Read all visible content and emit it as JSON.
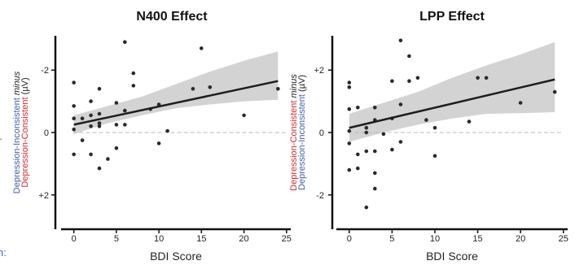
{
  "page": {
    "edge_labels": [
      "n:"
    ]
  },
  "chart_data": [
    {
      "type": "scatter",
      "title": "N400 Effect",
      "xlabel": "BDI Score",
      "ylabel_lines": [
        [
          {
            "text": "Depression-Inconsistent ",
            "color": "#3d5fa8"
          },
          {
            "text": "minus",
            "color": "#222222",
            "italic": true
          }
        ],
        [
          {
            "text": "Depression-Consistent",
            "color": "#d42a2a"
          },
          {
            "text": " (µV)",
            "color": "#222222"
          }
        ]
      ],
      "xlim": [
        -1.5,
        25.5
      ],
      "ylim": [
        3.1,
        -3.1
      ],
      "xticks": [
        0,
        5,
        10,
        15,
        20,
        25
      ],
      "ytick_values": [
        -2,
        0,
        2
      ],
      "ytick_labels": [
        "-2",
        "0",
        "+2"
      ],
      "grid": false,
      "reference_line": 0,
      "fit": {
        "x": [
          0,
          24
        ],
        "y": [
          -0.25,
          -1.65
        ]
      },
      "ci_band": {
        "x": [
          0,
          4,
          8,
          12,
          16,
          20,
          24
        ],
        "upper": [
          0.05,
          -0.3,
          -0.55,
          -0.78,
          -0.9,
          -1.0,
          -1.05
        ],
        "lower": [
          -0.55,
          -0.85,
          -1.15,
          -1.55,
          -1.95,
          -2.3,
          -2.6
        ]
      },
      "points": [
        {
          "x": 0,
          "y": -1.6
        },
        {
          "x": 0,
          "y": -0.85
        },
        {
          "x": 0,
          "y": -0.45
        },
        {
          "x": 0,
          "y": -0.1
        },
        {
          "x": 0,
          "y": 0.7
        },
        {
          "x": 1,
          "y": -0.45
        },
        {
          "x": 1,
          "y": 0.25
        },
        {
          "x": 2,
          "y": -1.0
        },
        {
          "x": 2,
          "y": -0.55
        },
        {
          "x": 2,
          "y": -0.2
        },
        {
          "x": 2,
          "y": 0.7
        },
        {
          "x": 3,
          "y": -1.4
        },
        {
          "x": 3,
          "y": -0.6
        },
        {
          "x": 3,
          "y": -0.3
        },
        {
          "x": 3,
          "y": -0.2
        },
        {
          "x": 3,
          "y": 1.15
        },
        {
          "x": 4,
          "y": 0.85
        },
        {
          "x": 5,
          "y": -0.95
        },
        {
          "x": 5,
          "y": -0.25
        },
        {
          "x": 5,
          "y": 0.5
        },
        {
          "x": 6,
          "y": -2.9
        },
        {
          "x": 6,
          "y": -0.7
        },
        {
          "x": 6,
          "y": -0.25
        },
        {
          "x": 7,
          "y": -1.9
        },
        {
          "x": 7,
          "y": -1.5
        },
        {
          "x": 9,
          "y": -0.75
        },
        {
          "x": 10,
          "y": -0.9
        },
        {
          "x": 10,
          "y": 0.35
        },
        {
          "x": 11,
          "y": -0.05
        },
        {
          "x": 14,
          "y": -1.4
        },
        {
          "x": 15,
          "y": -2.7
        },
        {
          "x": 16,
          "y": -1.45
        },
        {
          "x": 20,
          "y": -0.55
        },
        {
          "x": 24,
          "y": -1.4
        }
      ]
    },
    {
      "type": "scatter",
      "title": "LPP Effect",
      "xlabel": "BDI Score",
      "ylabel_lines": [
        [
          {
            "text": "Depression-Consistent",
            "color": "#d42a2a"
          },
          {
            "text": " ",
            "color": "#222222"
          },
          {
            "text": "minus",
            "color": "#222222",
            "italic": true
          }
        ],
        [
          {
            "text": "Depression-Inconsistent",
            "color": "#3d5fa8"
          },
          {
            "text": " (µV)",
            "color": "#222222"
          }
        ]
      ],
      "xlim": [
        -1.5,
        25.5
      ],
      "ylim": [
        -3.1,
        3.1
      ],
      "xticks": [
        0,
        5,
        10,
        15,
        20,
        25
      ],
      "ytick_values": [
        2,
        0,
        -2
      ],
      "ytick_labels": [
        "+2",
        "0",
        "-2"
      ],
      "grid": false,
      "reference_line": 0,
      "fit": {
        "x": [
          0,
          24
        ],
        "y": [
          0.15,
          1.7
        ]
      },
      "ci_band": {
        "x": [
          0,
          4,
          8,
          12,
          16,
          20,
          24
        ],
        "upper": [
          0.6,
          0.95,
          1.3,
          1.75,
          2.15,
          2.5,
          2.9
        ],
        "lower": [
          -0.3,
          0.0,
          0.25,
          0.45,
          0.6,
          0.62,
          0.65
        ]
      },
      "points": [
        {
          "x": 0,
          "y": 1.6
        },
        {
          "x": 0,
          "y": 1.45
        },
        {
          "x": 0,
          "y": 0.75
        },
        {
          "x": 0,
          "y": 0.05
        },
        {
          "x": 0,
          "y": -0.35
        },
        {
          "x": 0,
          "y": -1.2
        },
        {
          "x": 1,
          "y": 0.8
        },
        {
          "x": 1,
          "y": -0.7
        },
        {
          "x": 1,
          "y": -1.15
        },
        {
          "x": 2,
          "y": 0.15
        },
        {
          "x": 2,
          "y": 0.0
        },
        {
          "x": 2,
          "y": -0.6
        },
        {
          "x": 2,
          "y": -2.4
        },
        {
          "x": 3,
          "y": 0.8
        },
        {
          "x": 3,
          "y": 0.4
        },
        {
          "x": 3,
          "y": -0.6
        },
        {
          "x": 3,
          "y": -1.3
        },
        {
          "x": 3,
          "y": -1.8
        },
        {
          "x": 4,
          "y": -0.05
        },
        {
          "x": 5,
          "y": 1.65
        },
        {
          "x": 5,
          "y": 0.45
        },
        {
          "x": 5,
          "y": -0.55
        },
        {
          "x": 6,
          "y": 2.95
        },
        {
          "x": 6,
          "y": 0.9
        },
        {
          "x": 6,
          "y": -0.3
        },
        {
          "x": 7,
          "y": 2.45
        },
        {
          "x": 7,
          "y": 1.65
        },
        {
          "x": 8,
          "y": 1.75
        },
        {
          "x": 9,
          "y": 0.4
        },
        {
          "x": 10,
          "y": 0.15
        },
        {
          "x": 10,
          "y": -0.75
        },
        {
          "x": 14,
          "y": 0.35
        },
        {
          "x": 15,
          "y": 1.75
        },
        {
          "x": 16,
          "y": 1.75
        },
        {
          "x": 20,
          "y": 0.95
        },
        {
          "x": 24,
          "y": 1.3
        }
      ]
    }
  ]
}
